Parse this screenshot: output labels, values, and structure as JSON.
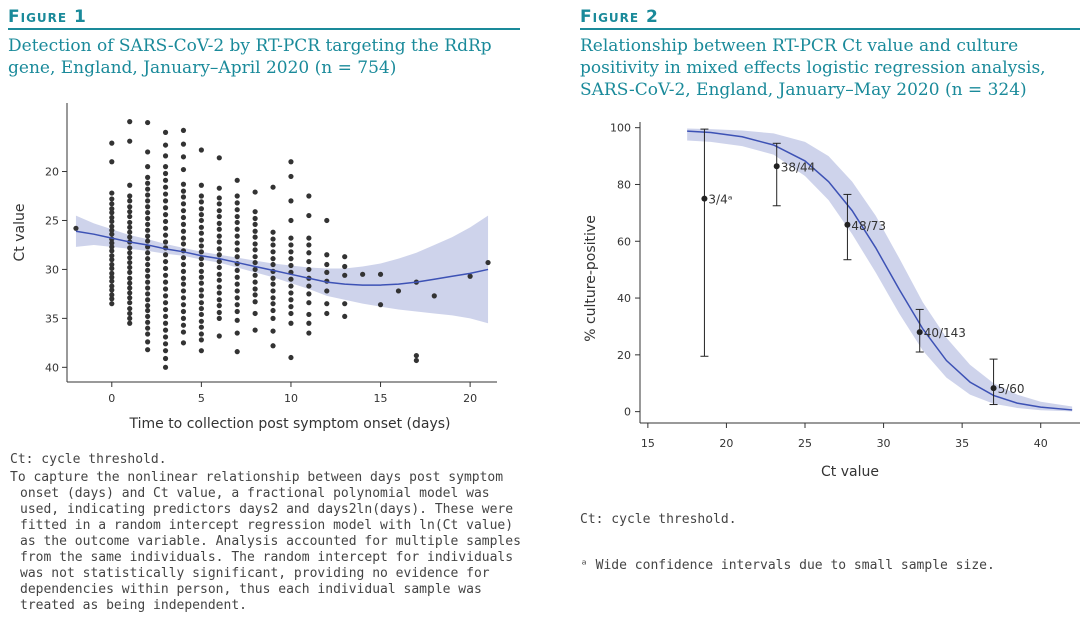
{
  "figure1": {
    "label": "Figure 1",
    "title_line1": "Detection of SARS-CoV-2 by RT-PCR targeting the RdRp",
    "title_line2": "gene, England, January–April 2020 (n = 754)",
    "note1": "Ct: cycle threshold.",
    "note2": "To capture the nonlinear relationship between days post symptom onset (days) and Ct value, a fractional polynomial model was used, indicating predictors days2 and days2ln(days). These were fitted in a random intercept regression model with ln(Ct value) as the outcome variable. Analysis accounted for multiple samples from the same individuals. The random intercept for individuals was not statistically significant, providing no evidence for dependencies within person, thus each individual sample was treated as being independent."
  },
  "figure2": {
    "label": "Figure 2",
    "title_line1": "Relationship between RT-PCR Ct value and culture",
    "title_line2": "positivity in mixed effects logistic regression analysis,",
    "title_line3": "SARS-CoV-2, England, January–May 2020 (n = 324)",
    "note1": "Ct: cycle threshold.",
    "note2": "ᵃ Wide confidence intervals due to small sample size."
  },
  "colors": {
    "accent": "#1a8a9a",
    "band": "#c5cbe8",
    "curve": "#3d52b5",
    "point": "#333333"
  },
  "chart_data": [
    {
      "type": "scatter",
      "xlabel": "Time to collection post symptom onset (days)",
      "ylabel": "Ct value",
      "xlim": [
        -2.5,
        21.5
      ],
      "ylim": [
        41.5,
        13
      ],
      "y_reversed": true,
      "xticks": [
        0,
        5,
        10,
        15,
        20
      ],
      "yticks": [
        20,
        25,
        30,
        35,
        40
      ],
      "grid": false,
      "columns": [
        {
          "x": -2,
          "values": [
            25.8
          ]
        },
        {
          "x": 0,
          "values": [
            17.1,
            19,
            22.2,
            22.8,
            23.3,
            23.8,
            24.2,
            24.7,
            25.1,
            25.6,
            26,
            26.4,
            26.9,
            27.3,
            27.7,
            28.1,
            28.6,
            29,
            29.5,
            29.9,
            30.4,
            30.8,
            31.2,
            31.7,
            32.1,
            32.6,
            33,
            33.5
          ]
        },
        {
          "x": 1,
          "values": [
            14.9,
            16.9,
            21.4,
            22.5,
            23,
            23.6,
            24.1,
            24.6,
            25.2,
            25.7,
            26.2,
            26.7,
            27.2,
            27.8,
            28.3,
            28.8,
            29.3,
            29.8,
            30.3,
            30.9,
            31.4,
            31.9,
            32.4,
            32.9,
            33.4,
            34,
            34.5,
            35,
            35.5
          ]
        },
        {
          "x": 2,
          "values": [
            15,
            18,
            19.5,
            20.6,
            21.2,
            21.8,
            22.4,
            23,
            23.6,
            24.2,
            24.8,
            25.4,
            26,
            26.6,
            27.1,
            27.7,
            28.3,
            28.9,
            29.5,
            30.1,
            30.7,
            31.3,
            31.9,
            32.5,
            33.1,
            33.7,
            34.2,
            34.8,
            35.4,
            36,
            36.6,
            37.4,
            38.2
          ]
        },
        {
          "x": 3,
          "values": [
            16,
            17.3,
            18.4,
            19.5,
            20.2,
            20.9,
            21.6,
            22.3,
            23,
            23.7,
            24.4,
            25.1,
            25.8,
            26.5,
            27.2,
            27.8,
            28.5,
            29.2,
            29.9,
            30.6,
            31.3,
            32,
            32.7,
            33.4,
            34.1,
            34.8,
            35.5,
            36.2,
            36.9,
            37.6,
            38.3,
            39.1,
            40
          ]
        },
        {
          "x": 4,
          "values": [
            15.8,
            17.2,
            18.5,
            19.8,
            21.3,
            22,
            22.6,
            23.3,
            24,
            24.7,
            25.4,
            26.1,
            26.8,
            27.4,
            28.1,
            28.8,
            29.5,
            30.2,
            30.9,
            31.5,
            32.2,
            32.9,
            33.6,
            34.3,
            35,
            35.7,
            36.4,
            37.5
          ]
        },
        {
          "x": 5,
          "values": [
            17.8,
            21.4,
            22.5,
            23.1,
            23.8,
            24.4,
            25,
            25.7,
            26.3,
            27,
            27.6,
            28.2,
            28.9,
            29.5,
            30.2,
            30.8,
            31.4,
            32.1,
            32.7,
            33.4,
            34,
            34.6,
            35.3,
            35.9,
            36.6,
            37.2,
            38.3
          ]
        },
        {
          "x": 6,
          "values": [
            18.6,
            21.7,
            22.7,
            23.3,
            24,
            24.6,
            25.3,
            25.9,
            26.6,
            27.2,
            27.9,
            28.5,
            29.2,
            29.8,
            30.5,
            31.1,
            31.8,
            32.4,
            33.1,
            33.7,
            34.4,
            35,
            36.8
          ]
        },
        {
          "x": 7,
          "values": [
            20.9,
            22.5,
            23.2,
            23.9,
            24.6,
            25.2,
            25.9,
            26.6,
            27.3,
            28,
            28.7,
            29.4,
            30.1,
            30.8,
            31.5,
            32.2,
            32.9,
            33.6,
            34.3,
            35.2,
            36.5,
            38.4
          ]
        },
        {
          "x": 8,
          "values": [
            22.1,
            24.1,
            24.8,
            25.4,
            26.1,
            26.7,
            27.4,
            28,
            28.7,
            29.3,
            30,
            30.6,
            31.3,
            32,
            32.6,
            33.3,
            34.5,
            36.2
          ]
        },
        {
          "x": 9,
          "values": [
            21.6,
            26.2,
            26.9,
            27.5,
            28.2,
            28.9,
            29.5,
            30.2,
            30.9,
            31.5,
            32.2,
            32.9,
            33.5,
            34.2,
            35,
            36.3,
            37.8
          ]
        },
        {
          "x": 10,
          "values": [
            19,
            20.5,
            23,
            25,
            26.8,
            27.5,
            28.2,
            28.9,
            29.6,
            30.3,
            31,
            31.7,
            32.4,
            33.1,
            33.8,
            34.5,
            35.5,
            39
          ]
        },
        {
          "x": 11,
          "values": [
            22.5,
            24.5,
            26.8,
            27.5,
            28.3,
            29.2,
            30,
            30.9,
            31.7,
            32.5,
            33.4,
            34.6,
            35.5,
            36.5
          ]
        },
        {
          "x": 12,
          "values": [
            25,
            28.5,
            29.5,
            30.3,
            31.2,
            32.2,
            33.5,
            34.5
          ]
        },
        {
          "x": 13,
          "values": [
            28.7,
            29.7,
            30.6,
            33.5,
            34.8
          ]
        },
        {
          "x": 14,
          "values": [
            30.5
          ]
        },
        {
          "x": 15,
          "values": [
            30.5,
            33.6
          ]
        },
        {
          "x": 16,
          "values": [
            32.2
          ]
        },
        {
          "x": 17,
          "values": [
            31.3,
            38.8,
            39.3
          ]
        },
        {
          "x": 18,
          "values": [
            32.7
          ]
        },
        {
          "x": 20,
          "values": [
            30.7
          ]
        },
        {
          "x": 21,
          "values": [
            29.3
          ]
        }
      ],
      "fit": {
        "x": [
          -2,
          -1,
          0,
          1,
          2,
          3,
          4,
          5,
          6,
          7,
          8,
          9,
          10,
          11,
          12,
          13,
          14,
          15,
          16,
          17,
          18,
          19,
          20,
          21
        ],
        "y": [
          26.1,
          26.4,
          26.8,
          27.2,
          27.5,
          27.9,
          28.2,
          28.6,
          28.9,
          29.3,
          29.7,
          30.1,
          30.5,
          30.9,
          31.3,
          31.5,
          31.6,
          31.6,
          31.5,
          31.3,
          31,
          30.7,
          30.4,
          30
        ],
        "lower": [
          24.5,
          25.3,
          25.9,
          26.5,
          26.9,
          27.4,
          27.8,
          28.2,
          28.5,
          28.8,
          29.1,
          29.4,
          29.6,
          29.8,
          29.9,
          29.9,
          29.7,
          29.4,
          28.9,
          28.3,
          27.5,
          26.7,
          25.7,
          24.5
        ],
        "upper": [
          27.7,
          27.5,
          27.7,
          27.9,
          28.1,
          28.4,
          28.6,
          29,
          29.3,
          29.8,
          30.3,
          30.8,
          31.4,
          32,
          32.7,
          33.1,
          33.5,
          33.8,
          34.1,
          34.3,
          34.5,
          34.7,
          35,
          35.5
        ]
      }
    },
    {
      "type": "line",
      "xlabel": "Ct value",
      "ylabel": "% culture-positive",
      "xlim": [
        14.5,
        42.5
      ],
      "ylim": [
        -4,
        102
      ],
      "xticks": [
        15,
        20,
        25,
        30,
        35,
        40
      ],
      "yticks": [
        0,
        20,
        40,
        60,
        80,
        100
      ],
      "grid": false,
      "points": [
        {
          "x": 18.6,
          "y": 75,
          "lo": 19.5,
          "hi": 99.5,
          "label": "3/4ᵃ"
        },
        {
          "x": 23.2,
          "y": 86.4,
          "lo": 72.5,
          "hi": 94.5,
          "label": "38/44"
        },
        {
          "x": 27.7,
          "y": 65.8,
          "lo": 53.5,
          "hi": 76.5,
          "label": "48/73"
        },
        {
          "x": 32.3,
          "y": 28,
          "lo": 21,
          "hi": 36,
          "label": "40/143"
        },
        {
          "x": 37,
          "y": 8.3,
          "lo": 2.5,
          "hi": 18.5,
          "label": "5/60"
        }
      ],
      "fit": {
        "x": [
          17.5,
          19,
          21,
          23,
          25,
          26.5,
          28,
          29.5,
          31,
          32.5,
          34,
          35.5,
          37,
          38.5,
          40,
          42
        ],
        "y": [
          98.8,
          98.3,
          96.8,
          93.9,
          88.3,
          81,
          70.8,
          57.7,
          43,
          29.1,
          18,
          10.4,
          5.7,
          3,
          1.6,
          0.6
        ],
        "lower": [
          95.5,
          95,
          93.5,
          90.5,
          83,
          74.5,
          62.5,
          49,
          34.5,
          21.5,
          12,
          6,
          2.8,
          1.3,
          0.5,
          0.1
        ],
        "upper": [
          99.7,
          99.5,
          99,
          98,
          95,
          90,
          81,
          69,
          54,
          38.5,
          26,
          16.5,
          10,
          6,
          3.5,
          1.8
        ]
      }
    }
  ]
}
